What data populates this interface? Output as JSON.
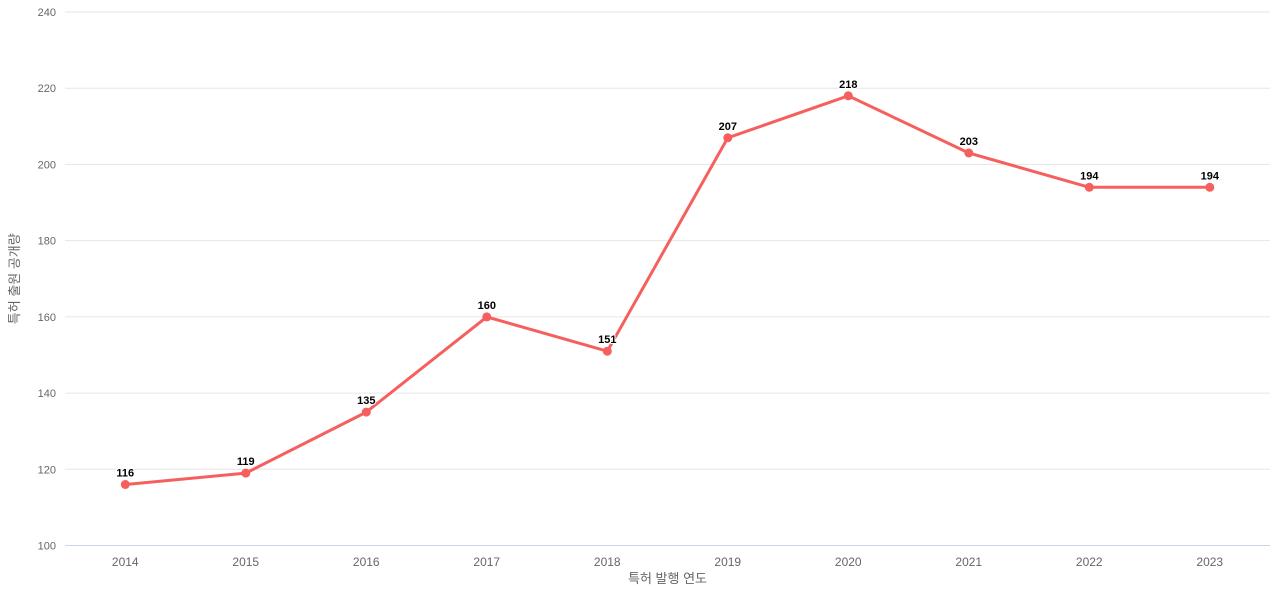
{
  "chart_data": {
    "type": "line",
    "title": "",
    "categories": [
      "2014",
      "2015",
      "2016",
      "2017",
      "2018",
      "2019",
      "2020",
      "2021",
      "2022",
      "2023"
    ],
    "values": [
      116,
      119,
      135,
      160,
      151,
      207,
      218,
      203,
      194,
      194
    ],
    "xlabel": "특허 발행 연도",
    "ylabel": "특허 출원 공개량",
    "ylim": [
      100,
      240
    ],
    "ytick_step": 20,
    "yticks": [
      100,
      120,
      140,
      160,
      180,
      200,
      220,
      240
    ],
    "grid": true,
    "legend_position": "none",
    "data_labels_visible": true
  },
  "colors": {
    "series": "#f5605f",
    "grid": "#e6e6e6",
    "axis_line": "#ccd6eb",
    "tick_label": "#666666",
    "axis_title": "#666666",
    "data_label": "#000000",
    "background": "#ffffff"
  }
}
